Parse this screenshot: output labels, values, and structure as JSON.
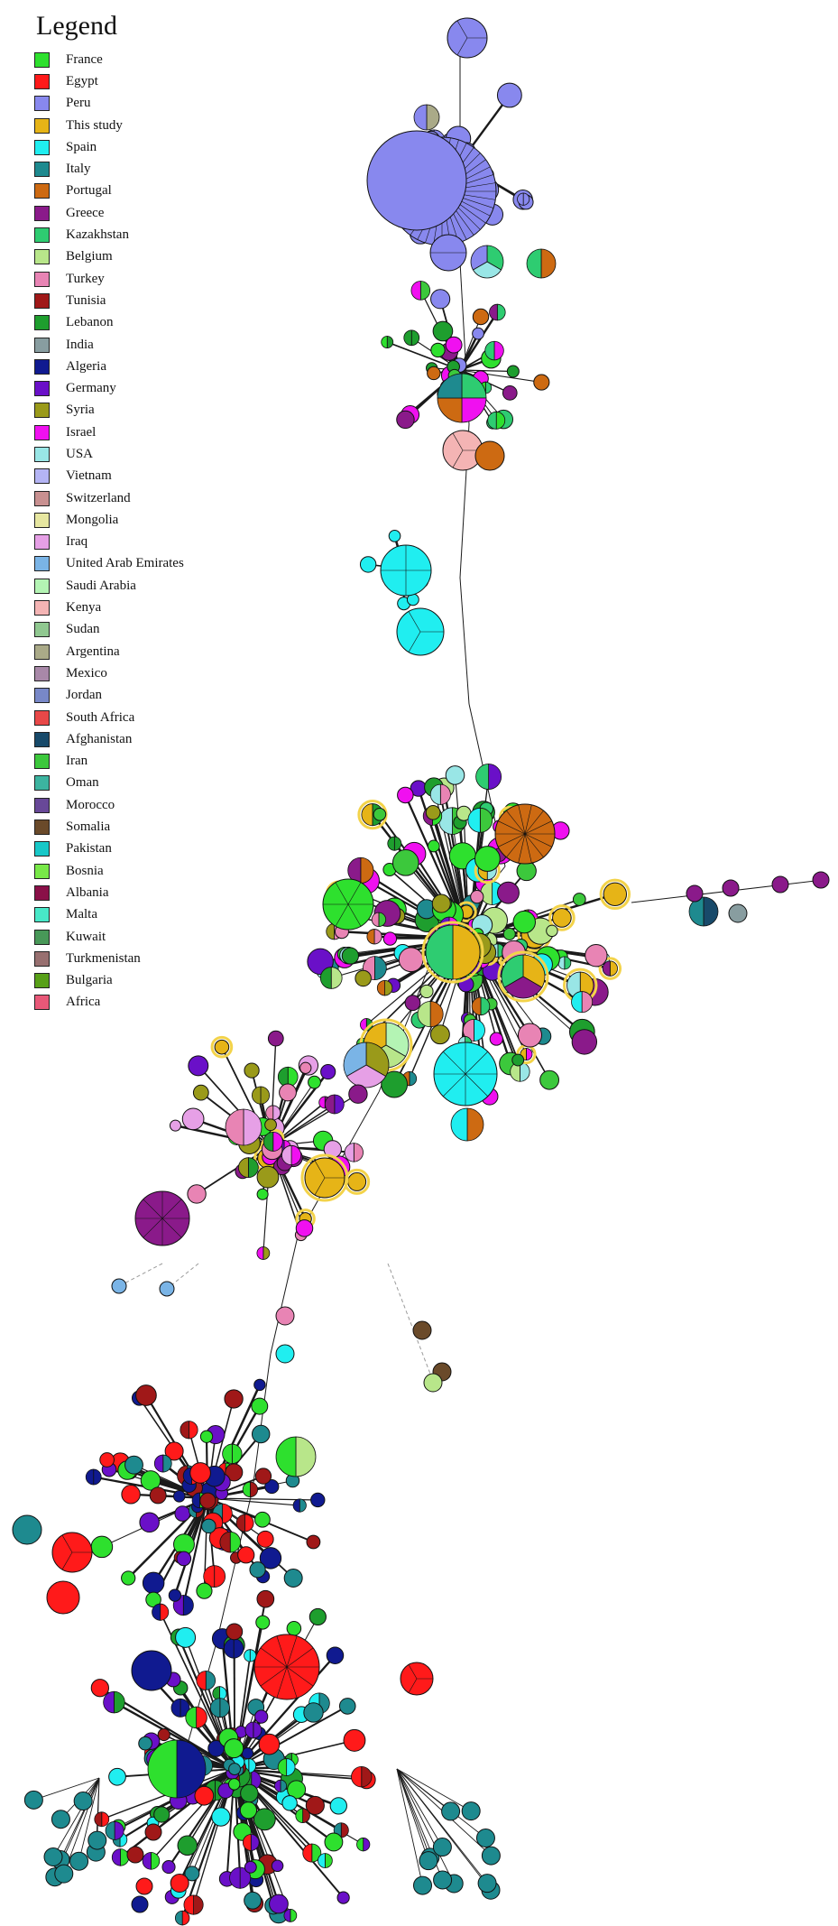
{
  "legend": {
    "title": "Legend",
    "items": [
      {
        "label": "France",
        "color": "#2ee02e"
      },
      {
        "label": "Egypt",
        "color": "#ff1a1a"
      },
      {
        "label": "Peru",
        "color": "#8888ee"
      },
      {
        "label": "This study",
        "color": "#e6b417"
      },
      {
        "label": "Spain",
        "color": "#20eef0"
      },
      {
        "label": "Italy",
        "color": "#1e8a8f"
      },
      {
        "label": "Portugal",
        "color": "#cd6a12"
      },
      {
        "label": "Greece",
        "color": "#8a1a8a"
      },
      {
        "label": "Kazakhstan",
        "color": "#2ecc71"
      },
      {
        "label": "Belgium",
        "color": "#b8e68a"
      },
      {
        "label": "Turkey",
        "color": "#e884b4"
      },
      {
        "label": "Tunisia",
        "color": "#a01818"
      },
      {
        "label": "Lebanon",
        "color": "#1e9e2e"
      },
      {
        "label": "India",
        "color": "#889da0"
      },
      {
        "label": "Algeria",
        "color": "#101a90"
      },
      {
        "label": "Germany",
        "color": "#6a10c8"
      },
      {
        "label": "Syria",
        "color": "#9a9a1a"
      },
      {
        "label": "Israel",
        "color": "#f010f0"
      },
      {
        "label": "USA",
        "color": "#99e6e6"
      },
      {
        "label": "Vietnam",
        "color": "#b4b4f4"
      },
      {
        "label": "Switzerland",
        "color": "#c89090"
      },
      {
        "label": "Mongolia",
        "color": "#e6e6a0"
      },
      {
        "label": "Iraq",
        "color": "#e6a0e6"
      },
      {
        "label": "United Arab Emirates",
        "color": "#7ab4e6"
      },
      {
        "label": "Saudi Arabia",
        "color": "#b4f4b4"
      },
      {
        "label": "Kenya",
        "color": "#f4b4b4"
      },
      {
        "label": "Sudan",
        "color": "#90c890"
      },
      {
        "label": "Argentina",
        "color": "#aaaa88"
      },
      {
        "label": "Mexico",
        "color": "#a888a8"
      },
      {
        "label": "Jordan",
        "color": "#7888c8"
      },
      {
        "label": "South Africa",
        "color": "#e84848"
      },
      {
        "label": "Afghanistan",
        "color": "#184a6a"
      },
      {
        "label": "Iran",
        "color": "#3cc83c"
      },
      {
        "label": "Oman",
        "color": "#3cb4a0"
      },
      {
        "label": "Morocco",
        "color": "#684898"
      },
      {
        "label": "Somalia",
        "color": "#6a4a2a"
      },
      {
        "label": "Pakistan",
        "color": "#18c8c8"
      },
      {
        "label": "Bosnia",
        "color": "#78e848"
      },
      {
        "label": "Albania",
        "color": "#8a1048"
      },
      {
        "label": "Malta",
        "color": "#48e8c8"
      },
      {
        "label": "Kuwait",
        "color": "#489858"
      },
      {
        "label": "Turkmenistan",
        "color": "#987070"
      },
      {
        "label": "Bulgaria",
        "color": "#58a018"
      },
      {
        "label": "Africa",
        "color": "#e85878"
      }
    ]
  }
}
